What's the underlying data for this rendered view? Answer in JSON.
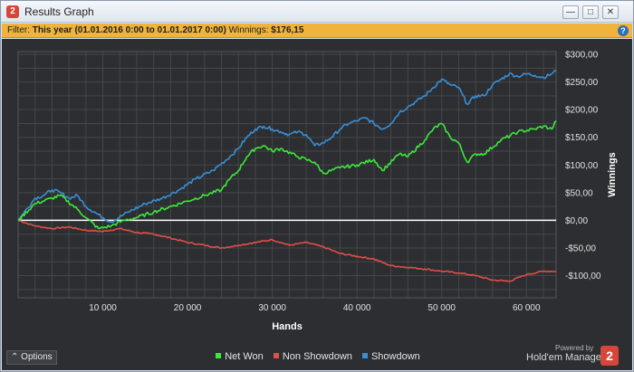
{
  "window": {
    "title": "Results Graph",
    "app_icon_text": "2",
    "minimize_glyph": "—",
    "maximize_glyph": "□",
    "close_glyph": "✕"
  },
  "filter": {
    "label": "Filter:",
    "value": "This year (01.01.2016 0:00 to 01.01.2017 0:00)",
    "winnings_label": "Winnings:",
    "winnings_value": "$176,15",
    "help_glyph": "?"
  },
  "footer": {
    "options_label": "Options",
    "options_glyph": "⌃",
    "powered_by": "Powered by",
    "brand": "Hold'em Manager",
    "brand_logo_text": "2"
  },
  "colors": {
    "net_won": "#3ee83a",
    "non_showdown": "#e04e4a",
    "showdown": "#3a8fd6",
    "zero_line": "#ffffff",
    "grid": "#44474b",
    "background": "#2c2e31"
  },
  "chart_data": {
    "type": "line",
    "xlabel": "Hands",
    "ylabel": "Winnings",
    "x_ticks": [
      10000,
      20000,
      30000,
      40000,
      50000,
      60000
    ],
    "x_tick_labels": [
      "10 000",
      "20 000",
      "30 000",
      "40 000",
      "50 000",
      "60 000"
    ],
    "y_ticks": [
      -100,
      -50,
      0,
      50,
      100,
      150,
      200,
      250,
      300
    ],
    "y_tick_labels": [
      "-$100,00",
      "-$50,00",
      "$0,00",
      "$50,00",
      "$100,00",
      "$150,00",
      "$200,00",
      "$250,00",
      "$300,00"
    ],
    "xlim": [
      0,
      63500
    ],
    "ylim": [
      -140,
      305
    ],
    "grid": true,
    "legend_position": "bottom-center",
    "series": [
      {
        "name": "Net Won",
        "color": "#3ee83a",
        "x": [
          0,
          2000,
          4000,
          5000,
          7000,
          8000,
          9500,
          11000,
          12500,
          14000,
          16000,
          18000,
          20000,
          22000,
          24000,
          25000,
          26000,
          27000,
          28000,
          29000,
          30000,
          31000,
          33000,
          34000,
          35000,
          36000,
          38000,
          40000,
          42000,
          43000,
          45000,
          46000,
          48000,
          49000,
          50000,
          51000,
          52000,
          53000,
          54000,
          55000,
          57000,
          59000,
          61000,
          62000,
          63000,
          63500
        ],
        "y": [
          0,
          30,
          40,
          45,
          20,
          5,
          -15,
          -10,
          0,
          5,
          15,
          25,
          35,
          45,
          55,
          75,
          90,
          115,
          130,
          135,
          125,
          130,
          115,
          110,
          105,
          85,
          95,
          100,
          110,
          90,
          120,
          115,
          145,
          165,
          175,
          150,
          140,
          105,
          120,
          120,
          145,
          160,
          165,
          170,
          165,
          180
        ]
      },
      {
        "name": "Non Showdown",
        "color": "#e04e4a",
        "x": [
          0,
          2000,
          4000,
          6000,
          8000,
          10000,
          12000,
          14000,
          16000,
          18000,
          20000,
          22000,
          24000,
          26000,
          28000,
          30000,
          32000,
          34000,
          36000,
          38000,
          40000,
          42000,
          44000,
          46000,
          48000,
          50000,
          52000,
          54000,
          56000,
          58000,
          60000,
          62000,
          63500
        ],
        "y": [
          0,
          -10,
          -15,
          -12,
          -18,
          -20,
          -15,
          -22,
          -25,
          -32,
          -40,
          -45,
          -50,
          -45,
          -40,
          -35,
          -45,
          -40,
          -48,
          -60,
          -65,
          -70,
          -82,
          -85,
          -88,
          -92,
          -95,
          -100,
          -108,
          -110,
          -98,
          -92,
          -92
        ]
      },
      {
        "name": "Showdown",
        "color": "#3a8fd6",
        "x": [
          0,
          2000,
          3000,
          4000,
          5000,
          6000,
          7000,
          8000,
          9000,
          10000,
          11000,
          13000,
          15000,
          17000,
          19000,
          21000,
          23000,
          25000,
          26000,
          27000,
          28000,
          29000,
          30000,
          31000,
          32000,
          33000,
          34000,
          35000,
          36000,
          37000,
          38000,
          39000,
          40000,
          41000,
          42000,
          43000,
          44000,
          45000,
          46000,
          47000,
          48000,
          49000,
          50000,
          51000,
          52000,
          53000,
          54000,
          55000,
          56000,
          57000,
          58000,
          59000,
          60000,
          61000,
          62000,
          63000,
          63500
        ],
        "y": [
          0,
          40,
          45,
          55,
          50,
          40,
          45,
          25,
          15,
          5,
          -3,
          15,
          30,
          40,
          55,
          75,
          90,
          115,
          130,
          150,
          165,
          170,
          165,
          160,
          155,
          160,
          155,
          135,
          140,
          150,
          165,
          175,
          180,
          185,
          175,
          165,
          175,
          195,
          205,
          215,
          225,
          240,
          255,
          245,
          240,
          210,
          225,
          225,
          245,
          255,
          265,
          260,
          265,
          262,
          258,
          265,
          270
        ]
      }
    ]
  }
}
